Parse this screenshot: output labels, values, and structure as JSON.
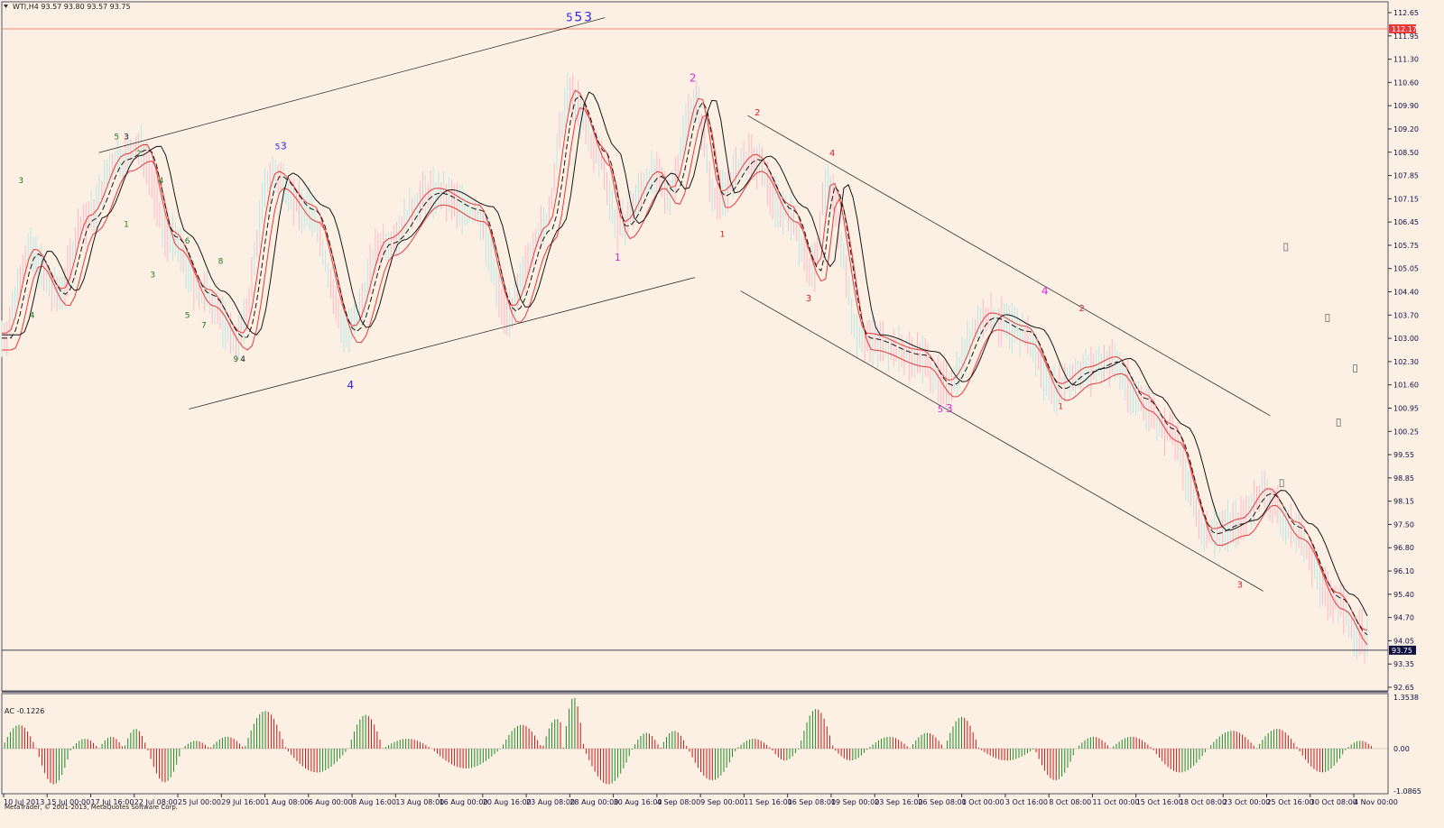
{
  "header": {
    "symbol_line": "WTI,H4  93.57 93.80 93.57 93.75"
  },
  "footer": {
    "copyright": "MetaTrader, © 2001-2013, MetaQuotes Software Corp."
  },
  "colors": {
    "background": "#fcf0e4",
    "axis_text": "#101040",
    "red": "#e8383a",
    "black": "#151515",
    "bull_bar": "#1f8a2a",
    "bear_bar": "#c81818",
    "wave_green": "#1f7a1f",
    "wave_blue": "#2a2ae0",
    "wave_magenta": "#d42ad4",
    "wave_red": "#dd2222",
    "hline_red": "#f08070"
  },
  "chart_data": [
    {
      "type": "line",
      "title": "WTI,H4",
      "ohlc_readout": [
        93.57,
        93.8,
        93.57,
        93.75
      ],
      "ylim": [
        92.65,
        112.65
      ],
      "y_ticks": [
        "112.65",
        "111.95",
        "111.30",
        "110.60",
        "109.90",
        "109.20",
        "108.50",
        "107.85",
        "107.15",
        "106.45",
        "105.75",
        "105.05",
        "104.40",
        "103.70",
        "103.00",
        "102.30",
        "101.60",
        "100.95",
        "100.25",
        "99.55",
        "98.85",
        "98.15",
        "97.50",
        "96.80",
        "96.10",
        "95.40",
        "94.70",
        "94.05",
        "93.35",
        "92.65"
      ],
      "x_ticks": [
        "10 Jul 2013",
        "15 Jul 00:00",
        "17 Jul 16:00",
        "22 Jul 08:00",
        "25 Jul 00:00",
        "29 Jul 16:00",
        "1 Aug 08:00",
        "6 Aug 00:00",
        "8 Aug 16:00",
        "13 Aug 08:00",
        "16 Aug 00:00",
        "20 Aug 16:00",
        "23 Aug 08:00",
        "28 Aug 00:00",
        "30 Aug 16:00",
        "4 Sep 08:00",
        "9 Sep 00:00",
        "11 Sep 16:00",
        "16 Sep 08:00",
        "19 Sep 00:00",
        "23 Sep 16:00",
        "26 Sep 08:00",
        "1 Oct 00:00",
        "3 Oct 16:00",
        "8 Oct 08:00",
        "11 Oct 00:00",
        "15 Oct 16:00",
        "18 Oct 08:00",
        "23 Oct 00:00",
        "25 Oct 16:00",
        "30 Oct 08:00",
        "4 Nov 00:00"
      ],
      "price_tags": [
        {
          "value": 112.17,
          "label": "112.17",
          "color": "#e8383a"
        },
        {
          "value": 93.75,
          "label": "93.75",
          "color": "#101040"
        }
      ],
      "hlines": [
        {
          "value": 112.17,
          "color": "#f08070"
        },
        {
          "value": 93.75,
          "color": "#404050"
        }
      ],
      "price_path": [
        {
          "x": 0,
          "y": 103.0
        },
        {
          "x": 0.02,
          "y": 105.5
        },
        {
          "x": 0.04,
          "y": 104.3
        },
        {
          "x": 0.06,
          "y": 106.5
        },
        {
          "x": 0.085,
          "y": 108.3
        },
        {
          "x": 0.1,
          "y": 108.6
        },
        {
          "x": 0.12,
          "y": 106.0
        },
        {
          "x": 0.145,
          "y": 104.3
        },
        {
          "x": 0.17,
          "y": 103.0
        },
        {
          "x": 0.195,
          "y": 107.8
        },
        {
          "x": 0.22,
          "y": 106.8
        },
        {
          "x": 0.25,
          "y": 103.2
        },
        {
          "x": 0.275,
          "y": 105.8
        },
        {
          "x": 0.31,
          "y": 107.3
        },
        {
          "x": 0.34,
          "y": 106.8
        },
        {
          "x": 0.365,
          "y": 103.8
        },
        {
          "x": 0.39,
          "y": 106.2
        },
        {
          "x": 0.41,
          "y": 110.2
        },
        {
          "x": 0.43,
          "y": 108.5
        },
        {
          "x": 0.445,
          "y": 106.3
        },
        {
          "x": 0.47,
          "y": 107.8
        },
        {
          "x": 0.48,
          "y": 107.3
        },
        {
          "x": 0.5,
          "y": 110.0
        },
        {
          "x": 0.515,
          "y": 107.2
        },
        {
          "x": 0.54,
          "y": 108.3
        },
        {
          "x": 0.565,
          "y": 106.8
        },
        {
          "x": 0.585,
          "y": 105.0
        },
        {
          "x": 0.595,
          "y": 107.5
        },
        {
          "x": 0.62,
          "y": 103.0
        },
        {
          "x": 0.66,
          "y": 102.5
        },
        {
          "x": 0.68,
          "y": 101.6
        },
        {
          "x": 0.71,
          "y": 103.6
        },
        {
          "x": 0.735,
          "y": 103.2
        },
        {
          "x": 0.76,
          "y": 101.5
        },
        {
          "x": 0.78,
          "y": 102.0
        },
        {
          "x": 0.8,
          "y": 102.3
        },
        {
          "x": 0.82,
          "y": 101.2
        },
        {
          "x": 0.84,
          "y": 100.3
        },
        {
          "x": 0.87,
          "y": 97.2
        },
        {
          "x": 0.89,
          "y": 97.5
        },
        {
          "x": 0.91,
          "y": 98.4
        },
        {
          "x": 0.93,
          "y": 97.4
        },
        {
          "x": 0.96,
          "y": 95.3
        },
        {
          "x": 0.98,
          "y": 94.2
        },
        {
          "x": 0.99,
          "y": 93.75
        }
      ],
      "channel_lines": [
        {
          "x1": 0.07,
          "y1": 108.5,
          "x2": 0.435,
          "y2": 112.5
        },
        {
          "x1": 0.135,
          "y1": 100.9,
          "x2": 0.5,
          "y2": 104.8
        },
        {
          "x1": 0.538,
          "y1": 109.6,
          "x2": 0.915,
          "y2": 100.7
        },
        {
          "x1": 0.533,
          "y1": 104.4,
          "x2": 0.91,
          "y2": 95.5
        }
      ],
      "wave_labels": [
        {
          "text": "3",
          "x": 0.012,
          "y": 107.6,
          "color": "#1f7a1f",
          "size": 9
        },
        {
          "text": "4",
          "x": 0.02,
          "y": 103.6,
          "color": "#1f7a1f",
          "size": 9
        },
        {
          "text": "5",
          "x": 0.081,
          "y": 108.9,
          "color": "#1f7a1f",
          "size": 9
        },
        {
          "text": "3",
          "x": 0.088,
          "y": 108.9,
          "color": "#151515",
          "size": 9
        },
        {
          "text": "2",
          "x": 0.097,
          "y": 108.4,
          "color": "#1f7a1f",
          "size": 9
        },
        {
          "text": "1",
          "x": 0.088,
          "y": 106.3,
          "color": "#1f7a1f",
          "size": 9
        },
        {
          "text": "4",
          "x": 0.113,
          "y": 107.6,
          "color": "#1f7a1f",
          "size": 9
        },
        {
          "text": "6",
          "x": 0.132,
          "y": 105.8,
          "color": "#1f7a1f",
          "size": 9
        },
        {
          "text": "3",
          "x": 0.107,
          "y": 104.8,
          "color": "#1f7a1f",
          "size": 9
        },
        {
          "text": "8",
          "x": 0.156,
          "y": 105.2,
          "color": "#1f7a1f",
          "size": 9
        },
        {
          "text": "5",
          "x": 0.132,
          "y": 103.6,
          "color": "#1f7a1f",
          "size": 9
        },
        {
          "text": "7",
          "x": 0.144,
          "y": 103.3,
          "color": "#1f7a1f",
          "size": 9
        },
        {
          "text": "9",
          "x": 0.167,
          "y": 102.3,
          "color": "#1f7a1f",
          "size": 9
        },
        {
          "text": "4",
          "x": 0.172,
          "y": 102.3,
          "color": "#151515",
          "size": 9
        },
        {
          "text": "5",
          "x": 0.197,
          "y": 108.6,
          "color": "#2a2ae0",
          "size": 9
        },
        {
          "text": "3",
          "x": 0.201,
          "y": 108.6,
          "color": "#2a2ae0",
          "size": 11
        },
        {
          "text": "4",
          "x": 0.249,
          "y": 101.5,
          "color": "#2a2ae0",
          "size": 12
        },
        {
          "text": "5",
          "x": 0.407,
          "y": 112.4,
          "color": "#2a2ae0",
          "size": 12
        },
        {
          "text": "5",
          "x": 0.413,
          "y": 112.4,
          "color": "#2a2ae0",
          "size": 14
        },
        {
          "text": "3",
          "x": 0.42,
          "y": 112.4,
          "color": "#2a2ae0",
          "size": 14
        },
        {
          "text": "1",
          "x": 0.442,
          "y": 105.3,
          "color": "#d42ad4",
          "size": 11
        },
        {
          "text": "2",
          "x": 0.496,
          "y": 110.6,
          "color": "#d42ad4",
          "size": 12
        },
        {
          "text": "1",
          "x": 0.518,
          "y": 106.0,
          "color": "#dd2222",
          "size": 9
        },
        {
          "text": "2",
          "x": 0.543,
          "y": 109.6,
          "color": "#dd2222",
          "size": 10
        },
        {
          "text": "4",
          "x": 0.597,
          "y": 108.4,
          "color": "#dd2222",
          "size": 10
        },
        {
          "text": "3",
          "x": 0.58,
          "y": 104.1,
          "color": "#dd2222",
          "size": 10
        },
        {
          "text": "5",
          "x": 0.675,
          "y": 100.8,
          "color": "#d42ad4",
          "size": 10
        },
        {
          "text": "3",
          "x": 0.681,
          "y": 100.8,
          "color": "#d42ad4",
          "size": 12
        },
        {
          "text": "4",
          "x": 0.75,
          "y": 104.3,
          "color": "#d42ad4",
          "size": 12
        },
        {
          "text": "2",
          "x": 0.777,
          "y": 103.8,
          "color": "#dd2222",
          "size": 10
        },
        {
          "text": "1",
          "x": 0.762,
          "y": 100.9,
          "color": "#dd2222",
          "size": 9
        },
        {
          "text": "3",
          "x": 0.891,
          "y": 95.6,
          "color": "#dd2222",
          "size": 10
        }
      ]
    },
    {
      "type": "bar",
      "title": "AC -0.1226",
      "indicator": "AC",
      "readout": -0.1226,
      "ylim": [
        -1.0865,
        1.3538
      ],
      "y_ticks": [
        "1.3538",
        "0.00",
        "-1.0865"
      ],
      "value_waves": [
        {
          "start": 0.0,
          "end": 0.025,
          "peak": 0.6
        },
        {
          "start": 0.025,
          "end": 0.05,
          "peak": -0.9
        },
        {
          "start": 0.05,
          "end": 0.07,
          "peak": 0.25
        },
        {
          "start": 0.07,
          "end": 0.088,
          "peak": 0.3
        },
        {
          "start": 0.088,
          "end": 0.105,
          "peak": 0.5
        },
        {
          "start": 0.105,
          "end": 0.13,
          "peak": -0.85
        },
        {
          "start": 0.13,
          "end": 0.15,
          "peak": 0.2
        },
        {
          "start": 0.15,
          "end": 0.175,
          "peak": 0.3
        },
        {
          "start": 0.175,
          "end": 0.205,
          "peak": 0.95
        },
        {
          "start": 0.205,
          "end": 0.25,
          "peak": -0.6
        },
        {
          "start": 0.25,
          "end": 0.275,
          "peak": 0.85
        },
        {
          "start": 0.275,
          "end": 0.31,
          "peak": 0.25
        },
        {
          "start": 0.31,
          "end": 0.36,
          "peak": -0.5
        },
        {
          "start": 0.36,
          "end": 0.39,
          "peak": 0.6
        },
        {
          "start": 0.39,
          "end": 0.41,
          "peak": 0.75
        },
        {
          "start": 0.405,
          "end": 0.42,
          "peak": 1.3
        },
        {
          "start": 0.42,
          "end": 0.455,
          "peak": -0.9
        },
        {
          "start": 0.455,
          "end": 0.475,
          "peak": 0.4
        },
        {
          "start": 0.475,
          "end": 0.495,
          "peak": 0.45
        },
        {
          "start": 0.495,
          "end": 0.53,
          "peak": -0.8
        },
        {
          "start": 0.53,
          "end": 0.555,
          "peak": 0.25
        },
        {
          "start": 0.555,
          "end": 0.575,
          "peak": -0.3
        },
        {
          "start": 0.575,
          "end": 0.6,
          "peak": 1.0
        },
        {
          "start": 0.6,
          "end": 0.625,
          "peak": -0.3
        },
        {
          "start": 0.625,
          "end": 0.655,
          "peak": 0.3
        },
        {
          "start": 0.655,
          "end": 0.68,
          "peak": 0.4
        },
        {
          "start": 0.68,
          "end": 0.705,
          "peak": 0.8
        },
        {
          "start": 0.705,
          "end": 0.745,
          "peak": -0.3
        },
        {
          "start": 0.745,
          "end": 0.775,
          "peak": -0.8
        },
        {
          "start": 0.775,
          "end": 0.8,
          "peak": 0.3
        },
        {
          "start": 0.8,
          "end": 0.83,
          "peak": 0.3
        },
        {
          "start": 0.83,
          "end": 0.87,
          "peak": -0.6
        },
        {
          "start": 0.87,
          "end": 0.905,
          "peak": 0.45
        },
        {
          "start": 0.905,
          "end": 0.935,
          "peak": 0.5
        },
        {
          "start": 0.935,
          "end": 0.97,
          "peak": -0.6
        },
        {
          "start": 0.97,
          "end": 0.99,
          "peak": 0.2
        }
      ]
    }
  ]
}
